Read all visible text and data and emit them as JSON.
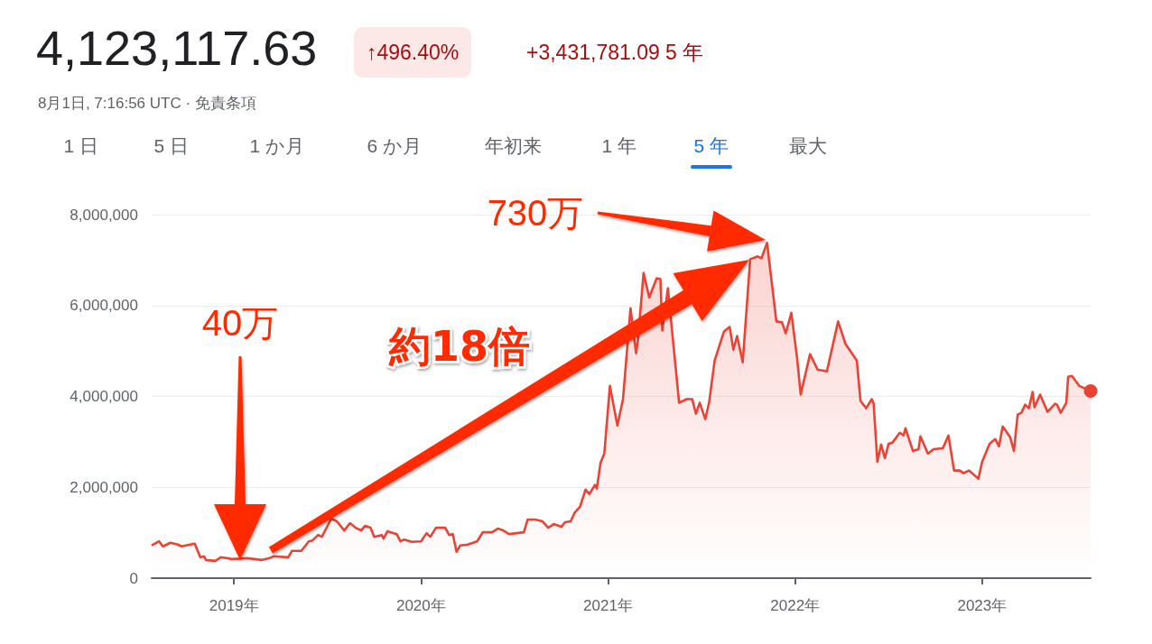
{
  "chart_data": {
    "type": "area",
    "title": "4,123,117.63",
    "subtitle": "8月1日, 7:16:56 UTC · 免責条項",
    "annotations": [
      "↑496.40%",
      "+3,431,781.09 5 年",
      "1 日",
      "5 日",
      "1 か月",
      "6 か月",
      "年初来",
      "1 年",
      "5 年",
      "最大",
      "約18倍",
      "40万",
      "730万"
    ],
    "x": [
      2018.56,
      2018.6,
      2018.62,
      2018.66,
      2018.7,
      2018.72,
      2018.79,
      2018.82,
      2018.84,
      2018.85,
      2018.9,
      2018.93,
      2018.99,
      2019.07,
      2019.15,
      2019.19,
      2019.21,
      2019.29,
      2019.31,
      2019.36,
      2019.4,
      2019.42,
      2019.45,
      2019.47,
      2019.52,
      2019.55,
      2019.59,
      2019.62,
      2019.65,
      2019.68,
      2019.7,
      2019.73,
      2019.75,
      2019.79,
      2019.8,
      2019.82,
      2019.87,
      2019.89,
      2019.91,
      2019.95,
      2020.0,
      2020.03,
      2020.05,
      2020.08,
      2020.13,
      2020.15,
      2020.17,
      2020.19,
      2020.21,
      2020.25,
      2020.3,
      2020.33,
      2020.38,
      2020.41,
      2020.44,
      2020.47,
      2020.51,
      2020.55,
      2020.57,
      2020.61,
      2020.65,
      2020.68,
      2020.71,
      2020.75,
      2020.77,
      2020.8,
      2020.82,
      2020.85,
      2020.88,
      2020.9,
      2020.93,
      2020.94,
      2020.96,
      2020.98,
      2021.01,
      2021.05,
      2021.08,
      2021.12,
      2021.15,
      2021.16,
      2021.19,
      2021.22,
      2021.26,
      2021.28,
      2021.29,
      2021.32,
      2021.34,
      2021.38,
      2021.42,
      2021.45,
      2021.47,
      2021.49,
      2021.52,
      2021.54,
      2021.57,
      2021.62,
      2021.65,
      2021.67,
      2021.69,
      2021.72,
      2021.76,
      2021.8,
      2021.82,
      2021.85,
      2021.9,
      2021.93,
      2021.95,
      2021.98,
      2022.01,
      2022.03,
      2022.08,
      2022.12,
      2022.17,
      2022.23,
      2022.27,
      2022.28,
      2022.33,
      2022.35,
      2022.38,
      2022.41,
      2022.42,
      2022.44,
      2022.46,
      2022.48,
      2022.5,
      2022.52,
      2022.56,
      2022.58,
      2022.59,
      2022.63,
      2022.66,
      2022.67,
      2022.71,
      2022.74,
      2022.79,
      2022.82,
      2022.85,
      2022.88,
      2022.9,
      2022.93,
      2022.98,
      2023.0,
      2023.04,
      2023.07,
      2023.09,
      2023.11,
      2023.15,
      2023.17,
      2023.19,
      2023.21,
      2023.23,
      2023.25,
      2023.27,
      2023.28,
      2023.31,
      2023.35,
      2023.39,
      2023.4,
      2023.42,
      2023.45,
      2023.46,
      2023.48,
      2023.52,
      2023.58
    ],
    "series": [
      {
        "color": "#ea4335",
        "values": [
          720000,
          810000,
          700000,
          780000,
          740000,
          700000,
          760000,
          460000,
          480000,
          400000,
          380000,
          460000,
          420000,
          440000,
          400000,
          440000,
          480000,
          460000,
          600000,
          600000,
          810000,
          830000,
          950000,
          910000,
          1310000,
          1250000,
          1050000,
          1210000,
          1110000,
          1050000,
          1150000,
          1110000,
          910000,
          950000,
          870000,
          1030000,
          970000,
          810000,
          850000,
          800000,
          810000,
          990000,
          910000,
          1110000,
          1110000,
          950000,
          970000,
          580000,
          720000,
          740000,
          810000,
          1010000,
          1010000,
          1090000,
          1050000,
          970000,
          990000,
          1010000,
          1290000,
          1290000,
          1250000,
          1110000,
          1190000,
          1130000,
          1230000,
          1250000,
          1430000,
          1570000,
          1950000,
          1850000,
          2050000,
          1970000,
          2540000,
          2740000,
          4230000,
          3360000,
          3940000,
          5940000,
          4950000,
          5250000,
          6720000,
          6180000,
          6600000,
          6580000,
          5450000,
          6380000,
          null,
          3860000,
          3940000,
          3940000,
          3620000,
          3860000,
          3500000,
          3860000,
          4790000,
          5430000,
          5530000,
          5030000,
          5330000,
          4750000,
          7020000,
          7080000,
          7040000,
          7380000,
          5650000,
          5630000,
          5390000,
          5840000,
          4870000,
          4040000,
          4930000,
          4590000,
          4550000,
          5650000,
          5150000,
          5090000,
          4790000,
          3900000,
          3740000,
          3940000,
          3840000,
          2560000,
          2940000,
          2640000,
          2960000,
          2980000,
          3200000,
          3140000,
          3300000,
          2800000,
          2840000,
          3120000,
          2740000,
          2840000,
          2860000,
          3140000,
          2370000,
          2370000,
          2310000,
          2370000,
          2190000,
          2560000,
          2960000,
          3060000,
          2900000,
          3340000,
          3100000,
          2800000,
          3600000,
          3640000,
          3820000,
          3740000,
          4100000,
          3760000,
          4040000,
          3660000,
          3840000,
          3820000,
          3640000,
          3860000,
          4430000,
          4450000,
          4230000,
          4120000
        ]
      }
    ],
    "xlim": [
      2018.56,
      2023.58
    ],
    "xticks": [
      {
        "value": 2019,
        "label": "2019年"
      },
      {
        "value": 2020,
        "label": "2020年"
      },
      {
        "value": 2021,
        "label": "2021年"
      },
      {
        "value": 2022,
        "label": "2022年"
      },
      {
        "value": 2023,
        "label": "2023年"
      }
    ],
    "ylim": [
      0,
      8000000
    ],
    "yticks": [
      {
        "value": 0,
        "label": "0"
      },
      {
        "value": 2000000,
        "label": "2,000,000"
      },
      {
        "value": 4000000,
        "label": "4,000,000"
      },
      {
        "value": 6000000,
        "label": "6,000,000"
      },
      {
        "value": 8000000,
        "label": "8,000,000"
      }
    ],
    "grid": "y"
  }
}
